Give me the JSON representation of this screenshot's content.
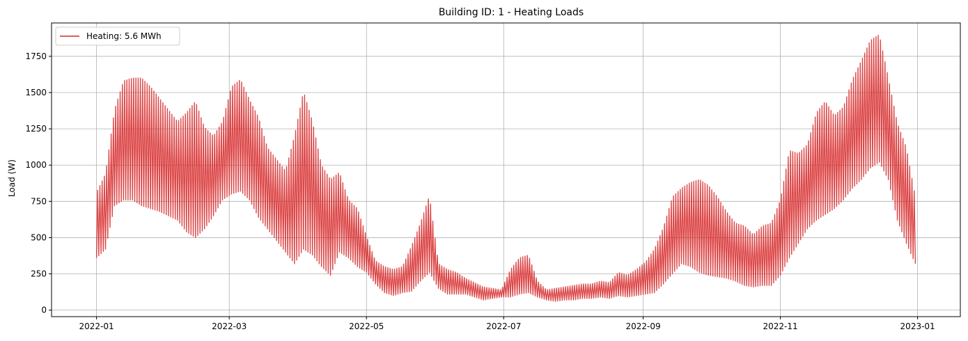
{
  "chart_data": {
    "type": "line",
    "title": "Building ID: 1 - Heating Loads",
    "xlabel": "",
    "ylabel": "Load (W)",
    "xlim": [
      "2021-12-12",
      "2023-01-20"
    ],
    "ylim": [
      -45,
      1980
    ],
    "grid": true,
    "legend_position": "top-left",
    "x_ticks": [
      "2022-01",
      "2022-03",
      "2022-05",
      "2022-07",
      "2022-09",
      "2022-11",
      "2023-01"
    ],
    "y_ticks": [
      0,
      250,
      500,
      750,
      1000,
      1250,
      1500,
      1750
    ],
    "series": [
      {
        "name": "Heating: 5.6 MWh",
        "color": "#d62728",
        "envelope_note_dates": "dates of sampled min/max envelope of hourly load",
        "x": [
          "2022-01-01",
          "2022-01-05",
          "2022-01-09",
          "2022-01-13",
          "2022-01-17",
          "2022-01-21",
          "2022-01-25",
          "2022-01-29",
          "2022-02-02",
          "2022-02-06",
          "2022-02-10",
          "2022-02-14",
          "2022-02-18",
          "2022-02-22",
          "2022-02-26",
          "2022-03-02",
          "2022-03-06",
          "2022-03-10",
          "2022-03-14",
          "2022-03-18",
          "2022-03-22",
          "2022-03-26",
          "2022-03-30",
          "2022-04-03",
          "2022-04-07",
          "2022-04-11",
          "2022-04-15",
          "2022-04-19",
          "2022-04-23",
          "2022-04-27",
          "2022-05-01",
          "2022-05-05",
          "2022-05-09",
          "2022-05-13",
          "2022-05-17",
          "2022-05-21",
          "2022-05-25",
          "2022-05-29",
          "2022-06-02",
          "2022-06-06",
          "2022-06-10",
          "2022-06-14",
          "2022-06-18",
          "2022-06-22",
          "2022-06-26",
          "2022-06-30",
          "2022-07-04",
          "2022-07-08",
          "2022-07-12",
          "2022-07-16",
          "2022-07-20",
          "2022-07-24",
          "2022-07-28",
          "2022-08-01",
          "2022-08-05",
          "2022-08-09",
          "2022-08-13",
          "2022-08-17",
          "2022-08-21",
          "2022-08-25",
          "2022-08-29",
          "2022-09-02",
          "2022-09-06",
          "2022-09-10",
          "2022-09-14",
          "2022-09-18",
          "2022-09-22",
          "2022-09-26",
          "2022-09-30",
          "2022-10-04",
          "2022-10-08",
          "2022-10-12",
          "2022-10-16",
          "2022-10-20",
          "2022-10-24",
          "2022-10-28",
          "2022-11-01",
          "2022-11-05",
          "2022-11-09",
          "2022-11-13",
          "2022-11-17",
          "2022-11-21",
          "2022-11-25",
          "2022-11-29",
          "2022-12-03",
          "2022-12-07",
          "2022-12-11",
          "2022-12-15",
          "2022-12-19",
          "2022-12-23",
          "2022-12-27",
          "2022-12-31"
        ],
        "y_min": [
          360,
          420,
          720,
          760,
          760,
          720,
          700,
          680,
          650,
          620,
          540,
          500,
          560,
          650,
          760,
          800,
          820,
          760,
          640,
          560,
          480,
          400,
          320,
          420,
          380,
          300,
          240,
          400,
          360,
          300,
          260,
          180,
          120,
          100,
          120,
          130,
          200,
          260,
          150,
          110,
          110,
          110,
          90,
          70,
          80,
          90,
          90,
          110,
          120,
          90,
          70,
          60,
          70,
          70,
          80,
          80,
          90,
          80,
          100,
          90,
          100,
          110,
          120,
          180,
          250,
          320,
          300,
          260,
          240,
          230,
          220,
          200,
          170,
          160,
          170,
          170,
          240,
          360,
          460,
          560,
          620,
          660,
          700,
          760,
          840,
          900,
          980,
          1020,
          900,
          620,
          460,
          320
        ],
        "y_max": [
          810,
          940,
          1380,
          1580,
          1600,
          1600,
          1540,
          1460,
          1380,
          1300,
          1360,
          1440,
          1260,
          1200,
          1300,
          1540,
          1590,
          1450,
          1330,
          1120,
          1040,
          960,
          1200,
          1510,
          1300,
          1000,
          900,
          950,
          760,
          700,
          510,
          340,
          300,
          280,
          300,
          440,
          600,
          790,
          320,
          280,
          260,
          220,
          190,
          160,
          150,
          140,
          280,
          360,
          380,
          200,
          140,
          150,
          160,
          170,
          180,
          180,
          200,
          190,
          260,
          240,
          280,
          330,
          420,
          570,
          780,
          840,
          880,
          900,
          860,
          780,
          680,
          600,
          580,
          520,
          580,
          600,
          760,
          1100,
          1080,
          1140,
          1360,
          1440,
          1340,
          1400,
          1590,
          1720,
          1860,
          1900,
          1600,
          1290,
          1120,
          780
        ]
      }
    ]
  }
}
